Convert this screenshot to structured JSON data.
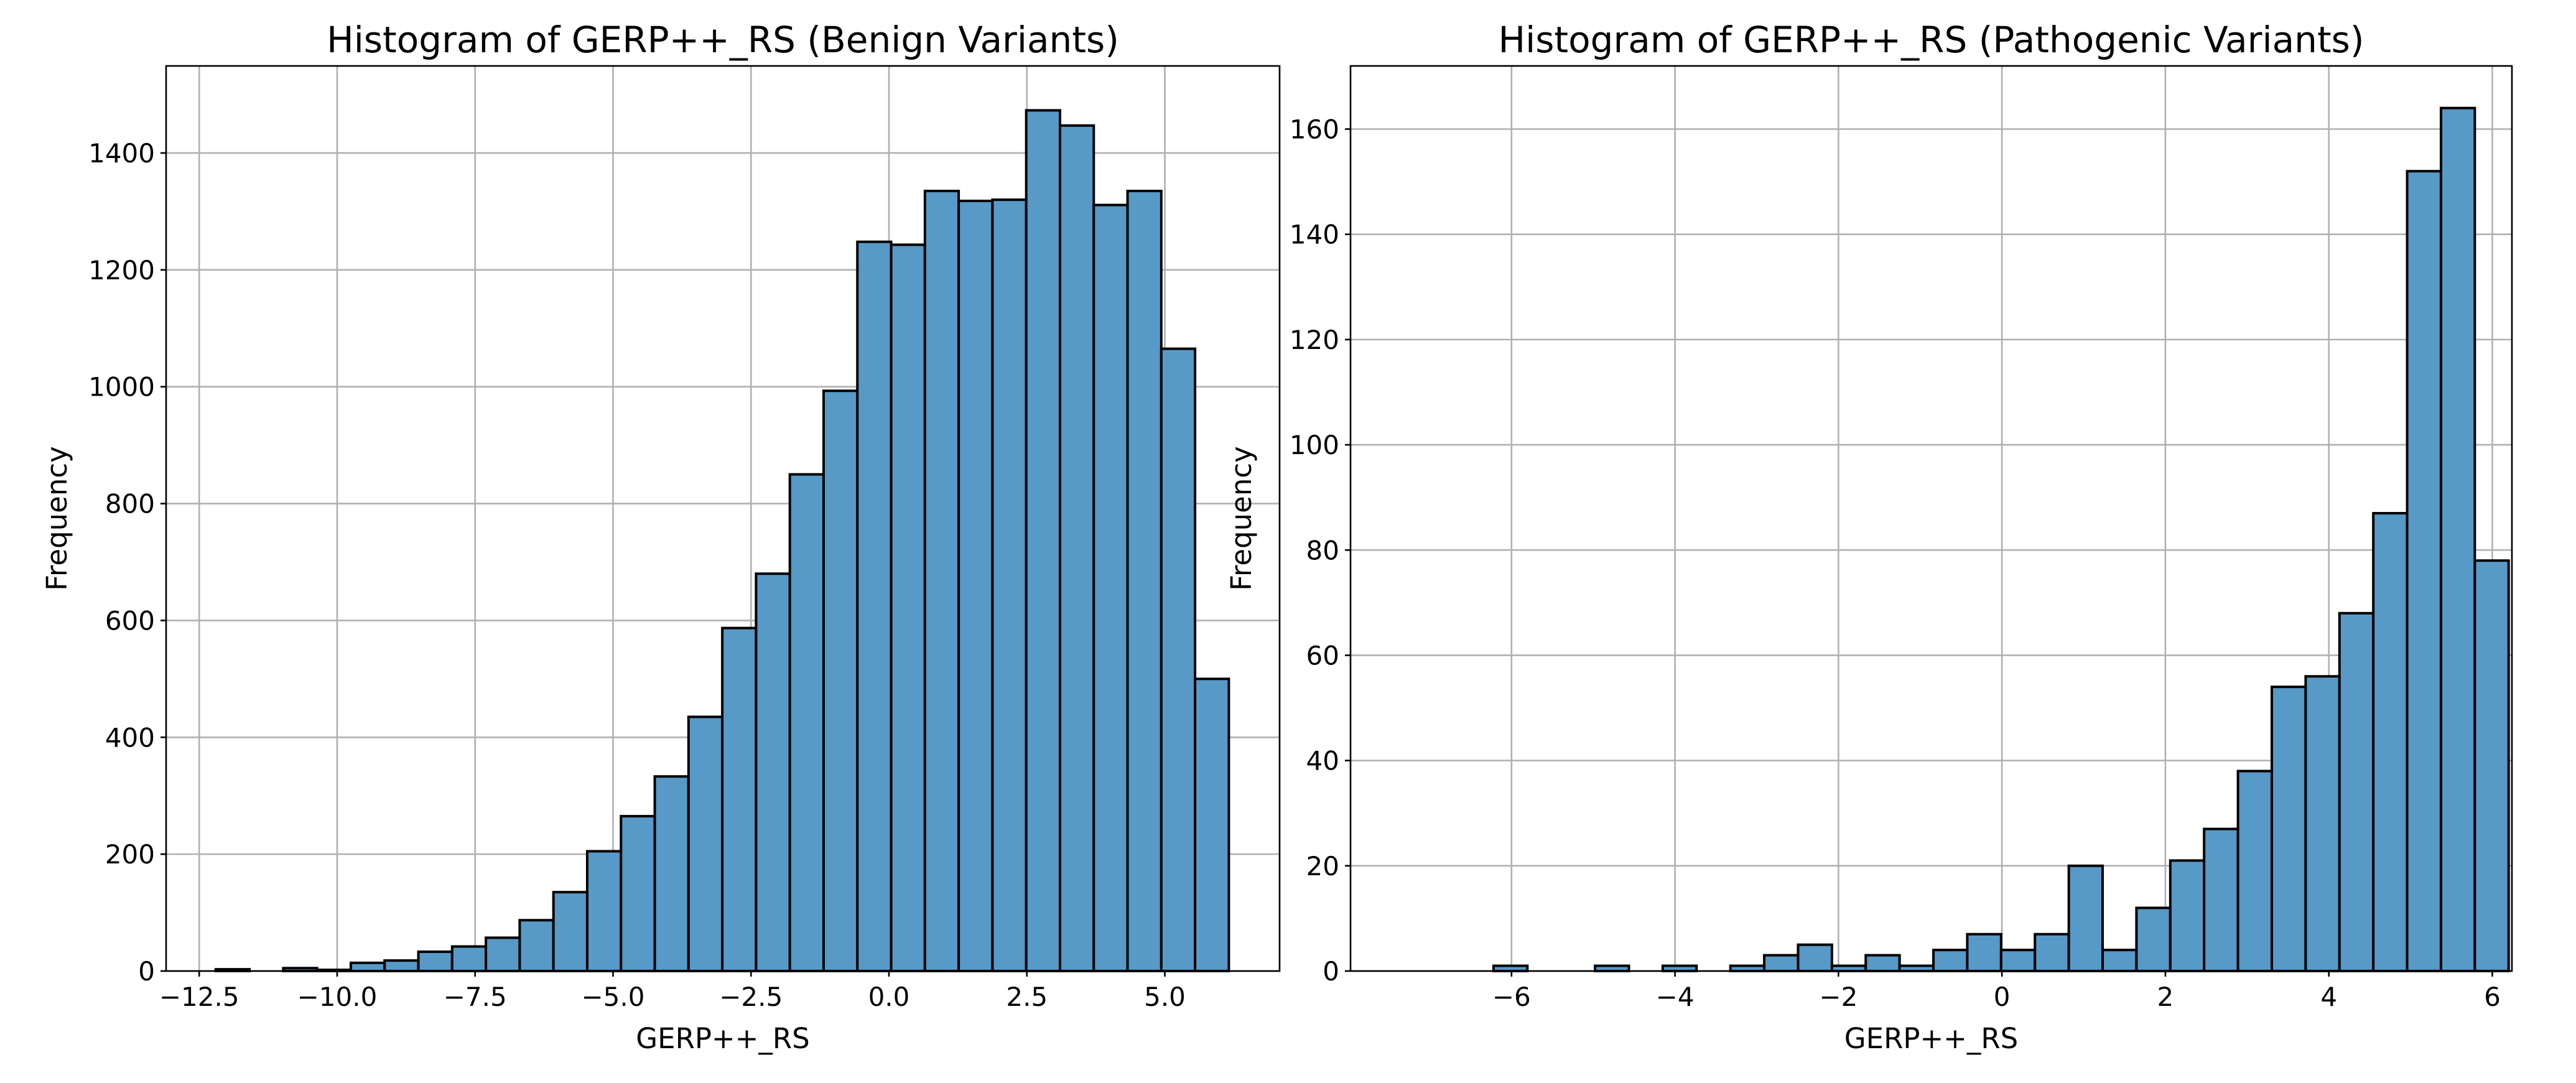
{
  "chart_data": [
    {
      "type": "histogram",
      "title": "Histogram of GERP++_RS (Benign Variants)",
      "xlabel": "GERP++_RS",
      "ylabel": "Frequency",
      "bins": [
        -12.2,
        -11.588,
        -10.976,
        -10.364,
        -9.752,
        -9.14,
        -8.528,
        -7.916,
        -7.304,
        -6.692,
        -6.08,
        -5.468,
        -4.856,
        -4.244,
        -3.632,
        -3.02,
        -2.408,
        -1.796,
        -1.184,
        -0.572,
        0.04,
        0.652,
        1.264,
        1.876,
        2.488,
        3.1,
        3.712,
        4.324,
        4.936,
        5.548,
        6.16
      ],
      "values": [
        3,
        0,
        5,
        2,
        14,
        18,
        33,
        42,
        57,
        87,
        135,
        205,
        265,
        333,
        435,
        587,
        680,
        850,
        993,
        1248,
        1243,
        1335,
        1318,
        1320,
        1473,
        1447,
        1311,
        1335,
        1065,
        500
      ],
      "color": "#5799c7",
      "edgecolor": "#000000",
      "xlim": [
        -13.1,
        7.08
      ],
      "ylim": [
        0,
        1549
      ],
      "xticks": [
        {
          "value": -12.5,
          "label": "−12.5"
        },
        {
          "value": -10,
          "label": "−10.0"
        },
        {
          "value": -7.5,
          "label": "−7.5"
        },
        {
          "value": -5,
          "label": "−5.0"
        },
        {
          "value": -2.5,
          "label": "−2.5"
        },
        {
          "value": 0,
          "label": "0.0"
        },
        {
          "value": 2.5,
          "label": "2.5"
        },
        {
          "value": 5,
          "label": "5.0"
        }
      ],
      "yticks": [
        0,
        200,
        400,
        600,
        800,
        1000,
        1200,
        1400
      ],
      "grid": true
    },
    {
      "type": "histogram",
      "title": "Histogram of GERP++_RS (Pathogenic Variants)",
      "xlabel": "GERP++_RS",
      "ylabel": "Frequency",
      "bins": [
        -6.22,
        -5.806,
        -5.392,
        -4.978,
        -4.564,
        -4.15,
        -3.736,
        -3.322,
        -2.908,
        -2.494,
        -2.08,
        -1.666,
        -1.252,
        -0.838,
        -0.424,
        -0.01,
        0.404,
        0.818,
        1.232,
        1.646,
        2.06,
        2.474,
        2.888,
        3.302,
        3.716,
        4.13,
        4.544,
        4.958,
        5.372,
        5.786,
        6.2
      ],
      "values": [
        1,
        0,
        0,
        1,
        0,
        1,
        0,
        1,
        3,
        5,
        1,
        3,
        1,
        4,
        7,
        4,
        7,
        20,
        4,
        12,
        21,
        27,
        38,
        54,
        56,
        68,
        87,
        152,
        164,
        78
      ],
      "color": "#5799c7",
      "edgecolor": "#000000",
      "xlim": [
        -7.97,
        6.24
      ],
      "ylim": [
        0,
        172
      ],
      "xticks": [
        {
          "value": -6,
          "label": "−6"
        },
        {
          "value": -4,
          "label": "−4"
        },
        {
          "value": -2,
          "label": "−2"
        },
        0,
        2,
        4,
        6
      ],
      "yticks": [
        0,
        20,
        40,
        60,
        80,
        100,
        120,
        140,
        160
      ],
      "grid": true
    }
  ]
}
